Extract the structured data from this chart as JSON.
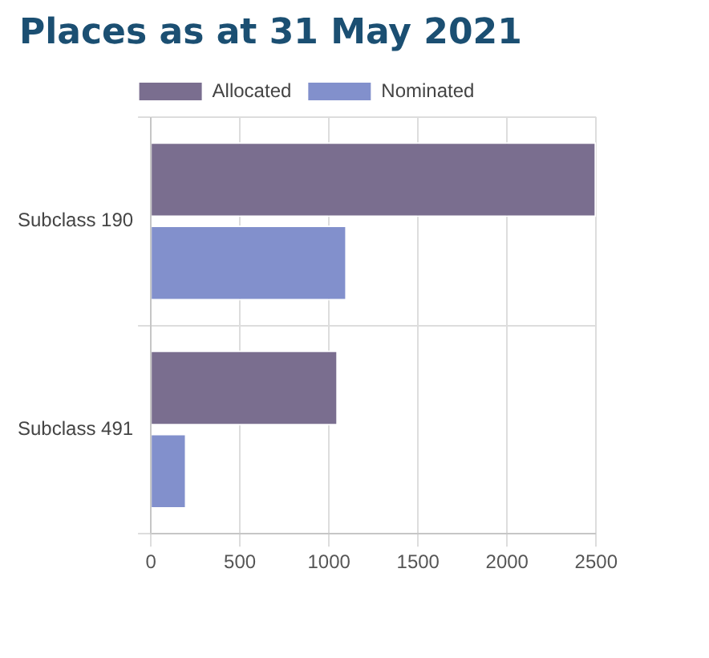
{
  "chart_data": {
    "type": "bar",
    "title": "Places as at 31 May 2021",
    "orientation": "horizontal",
    "categories": [
      "Subclass 190",
      "Subclass 491"
    ],
    "series": [
      {
        "name": "Allocated",
        "color": "#7a6e8f",
        "values": [
          2500,
          1050
        ]
      },
      {
        "name": "Nominated",
        "color": "#8290cc",
        "values": [
          1100,
          200
        ]
      }
    ],
    "xlim": [
      0,
      2500
    ],
    "xticks": [
      0,
      500,
      1000,
      1500,
      2000,
      2500
    ],
    "grid": true,
    "legend": "top"
  }
}
